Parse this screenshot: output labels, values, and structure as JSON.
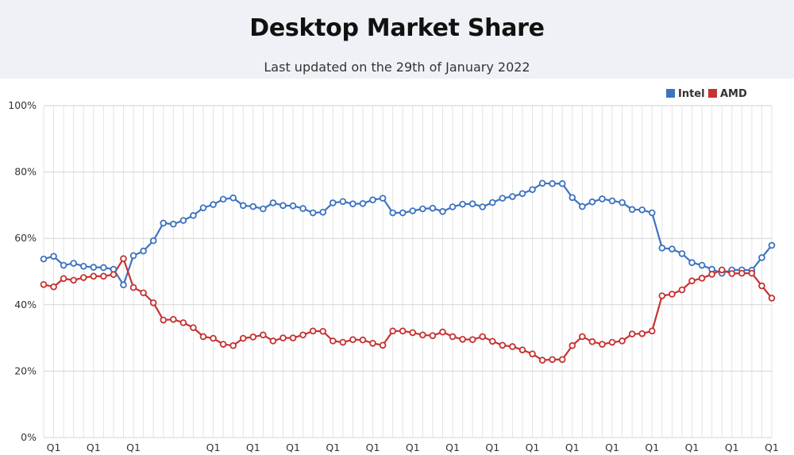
{
  "chart_data": {
    "type": "line",
    "title": "Desktop Market Share",
    "subtitle": "Last updated on the 29th of January 2022",
    "ylim": [
      0,
      100
    ],
    "yticks": [
      "0%",
      "20%",
      "40%",
      "60%",
      "80%",
      "100%"
    ],
    "xticks": [
      {
        "index": 1,
        "label": "Q1"
      },
      {
        "index": 5,
        "label": "Q1"
      },
      {
        "index": 9,
        "label": "Q1"
      },
      {
        "index": 17,
        "label": "Q1"
      },
      {
        "index": 21,
        "label": "Q1"
      },
      {
        "index": 25,
        "label": "Q1"
      },
      {
        "index": 29,
        "label": "Q1"
      },
      {
        "index": 33,
        "label": "Q1"
      },
      {
        "index": 37,
        "label": "Q1"
      },
      {
        "index": 41,
        "label": "Q1"
      },
      {
        "index": 45,
        "label": "Q1"
      },
      {
        "index": 49,
        "label": "Q1"
      },
      {
        "index": 53,
        "label": "Q1"
      },
      {
        "index": 57,
        "label": "Q1"
      },
      {
        "index": 61,
        "label": "Q1"
      },
      {
        "index": 65,
        "label": "Q1"
      },
      {
        "index": 69,
        "label": "Q1"
      },
      {
        "index": 73,
        "label": "Q1"
      },
      {
        "index": 77,
        "label": "Q1"
      }
    ],
    "grid": true,
    "legend_position": "top-right",
    "series": [
      {
        "name": "Intel",
        "color": "#3d73c0",
        "values": [
          53.8,
          54.6,
          51.9,
          52.5,
          51.6,
          51.3,
          51.2,
          50.7,
          46.0,
          54.8,
          56.2,
          59.3,
          64.6,
          64.3,
          65.4,
          66.9,
          69.2,
          70.2,
          71.8,
          72.2,
          69.9,
          69.6,
          68.9,
          70.7,
          69.9,
          69.8,
          69.0,
          67.7,
          67.9,
          70.7,
          71.1,
          70.4,
          70.5,
          71.6,
          72.1,
          67.7,
          67.7,
          68.3,
          68.9,
          69.1,
          68.1,
          69.5,
          70.3,
          70.4,
          69.5,
          70.8,
          72.1,
          72.6,
          73.5,
          74.7,
          76.6,
          76.5,
          76.5,
          72.3,
          69.6,
          71.0,
          71.9,
          71.3,
          70.8,
          68.7,
          68.6,
          67.7,
          57.1,
          56.8,
          55.4,
          52.7,
          51.9,
          50.7,
          49.5,
          50.5,
          50.5,
          50.4,
          54.2,
          57.9
        ]
      },
      {
        "name": "AMD",
        "color": "#c63232",
        "values": [
          46.1,
          45.4,
          47.9,
          47.4,
          48.2,
          48.6,
          48.6,
          49.1,
          53.9,
          45.2,
          43.6,
          40.6,
          35.4,
          35.6,
          34.6,
          33.1,
          30.4,
          29.9,
          28.1,
          27.7,
          29.9,
          30.3,
          30.9,
          29.1,
          30.0,
          30.0,
          30.9,
          32.1,
          32.0,
          29.1,
          28.7,
          29.5,
          29.4,
          28.4,
          27.8,
          32.1,
          32.1,
          31.6,
          30.9,
          30.7,
          31.8,
          30.4,
          29.6,
          29.5,
          30.4,
          29.0,
          27.8,
          27.4,
          26.4,
          25.2,
          23.3,
          23.5,
          23.5,
          27.7,
          30.4,
          28.9,
          28.1,
          28.7,
          29.1,
          31.2,
          31.3,
          32.1,
          42.7,
          43.2,
          44.5,
          47.2,
          48.0,
          49.2,
          50.5,
          49.4,
          49.5,
          49.5,
          45.7,
          42.0
        ]
      }
    ]
  }
}
